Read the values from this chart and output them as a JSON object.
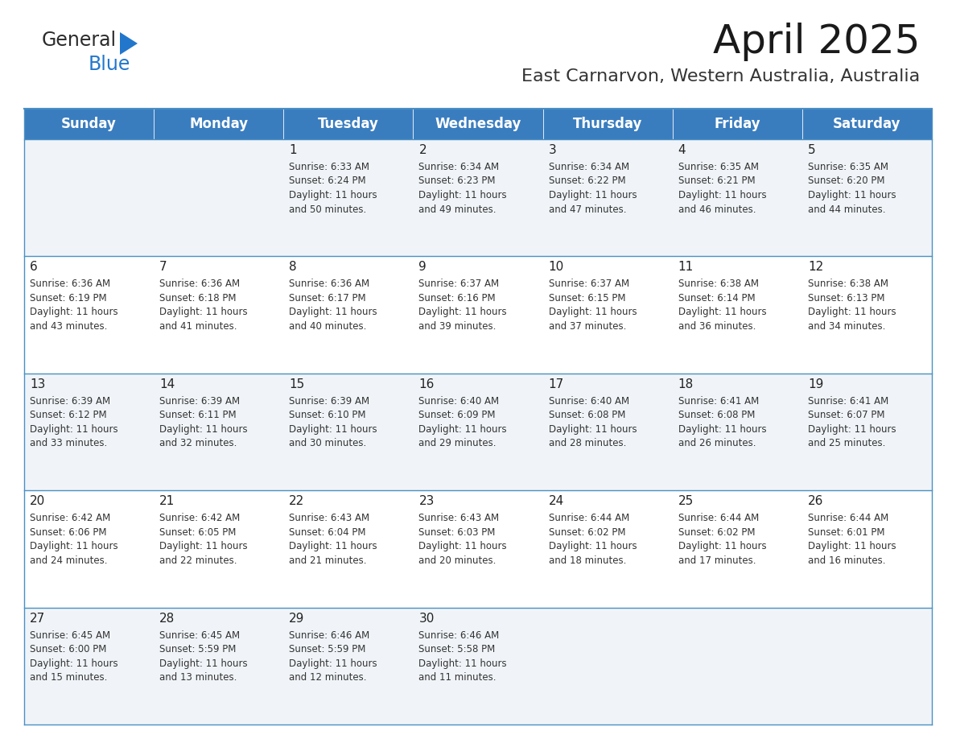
{
  "title": "April 2025",
  "subtitle": "East Carnarvon, Western Australia, Australia",
  "header_color": "#3a7dbf",
  "header_text_color": "#ffffff",
  "days_of_week": [
    "Sunday",
    "Monday",
    "Tuesday",
    "Wednesday",
    "Thursday",
    "Friday",
    "Saturday"
  ],
  "background_color": "#ffffff",
  "row_colors": [
    "#f0f4f8",
    "#ffffff",
    "#f0f4f8",
    "#ffffff",
    "#f0f4f8"
  ],
  "grid_line_color": "#4a90c4",
  "text_color": "#333333",
  "day_num_color": "#222222",
  "calendar_data": [
    {
      "day": 1,
      "col": 2,
      "row": 0,
      "sunrise": "6:33 AM",
      "sunset": "6:24 PM",
      "daylight_hours": 11,
      "daylight_minutes": 50
    },
    {
      "day": 2,
      "col": 3,
      "row": 0,
      "sunrise": "6:34 AM",
      "sunset": "6:23 PM",
      "daylight_hours": 11,
      "daylight_minutes": 49
    },
    {
      "day": 3,
      "col": 4,
      "row": 0,
      "sunrise": "6:34 AM",
      "sunset": "6:22 PM",
      "daylight_hours": 11,
      "daylight_minutes": 47
    },
    {
      "day": 4,
      "col": 5,
      "row": 0,
      "sunrise": "6:35 AM",
      "sunset": "6:21 PM",
      "daylight_hours": 11,
      "daylight_minutes": 46
    },
    {
      "day": 5,
      "col": 6,
      "row": 0,
      "sunrise": "6:35 AM",
      "sunset": "6:20 PM",
      "daylight_hours": 11,
      "daylight_minutes": 44
    },
    {
      "day": 6,
      "col": 0,
      "row": 1,
      "sunrise": "6:36 AM",
      "sunset": "6:19 PM",
      "daylight_hours": 11,
      "daylight_minutes": 43
    },
    {
      "day": 7,
      "col": 1,
      "row": 1,
      "sunrise": "6:36 AM",
      "sunset": "6:18 PM",
      "daylight_hours": 11,
      "daylight_minutes": 41
    },
    {
      "day": 8,
      "col": 2,
      "row": 1,
      "sunrise": "6:36 AM",
      "sunset": "6:17 PM",
      "daylight_hours": 11,
      "daylight_minutes": 40
    },
    {
      "day": 9,
      "col": 3,
      "row": 1,
      "sunrise": "6:37 AM",
      "sunset": "6:16 PM",
      "daylight_hours": 11,
      "daylight_minutes": 39
    },
    {
      "day": 10,
      "col": 4,
      "row": 1,
      "sunrise": "6:37 AM",
      "sunset": "6:15 PM",
      "daylight_hours": 11,
      "daylight_minutes": 37
    },
    {
      "day": 11,
      "col": 5,
      "row": 1,
      "sunrise": "6:38 AM",
      "sunset": "6:14 PM",
      "daylight_hours": 11,
      "daylight_minutes": 36
    },
    {
      "day": 12,
      "col": 6,
      "row": 1,
      "sunrise": "6:38 AM",
      "sunset": "6:13 PM",
      "daylight_hours": 11,
      "daylight_minutes": 34
    },
    {
      "day": 13,
      "col": 0,
      "row": 2,
      "sunrise": "6:39 AM",
      "sunset": "6:12 PM",
      "daylight_hours": 11,
      "daylight_minutes": 33
    },
    {
      "day": 14,
      "col": 1,
      "row": 2,
      "sunrise": "6:39 AM",
      "sunset": "6:11 PM",
      "daylight_hours": 11,
      "daylight_minutes": 32
    },
    {
      "day": 15,
      "col": 2,
      "row": 2,
      "sunrise": "6:39 AM",
      "sunset": "6:10 PM",
      "daylight_hours": 11,
      "daylight_minutes": 30
    },
    {
      "day": 16,
      "col": 3,
      "row": 2,
      "sunrise": "6:40 AM",
      "sunset": "6:09 PM",
      "daylight_hours": 11,
      "daylight_minutes": 29
    },
    {
      "day": 17,
      "col": 4,
      "row": 2,
      "sunrise": "6:40 AM",
      "sunset": "6:08 PM",
      "daylight_hours": 11,
      "daylight_minutes": 28
    },
    {
      "day": 18,
      "col": 5,
      "row": 2,
      "sunrise": "6:41 AM",
      "sunset": "6:08 PM",
      "daylight_hours": 11,
      "daylight_minutes": 26
    },
    {
      "day": 19,
      "col": 6,
      "row": 2,
      "sunrise": "6:41 AM",
      "sunset": "6:07 PM",
      "daylight_hours": 11,
      "daylight_minutes": 25
    },
    {
      "day": 20,
      "col": 0,
      "row": 3,
      "sunrise": "6:42 AM",
      "sunset": "6:06 PM",
      "daylight_hours": 11,
      "daylight_minutes": 24
    },
    {
      "day": 21,
      "col": 1,
      "row": 3,
      "sunrise": "6:42 AM",
      "sunset": "6:05 PM",
      "daylight_hours": 11,
      "daylight_minutes": 22
    },
    {
      "day": 22,
      "col": 2,
      "row": 3,
      "sunrise": "6:43 AM",
      "sunset": "6:04 PM",
      "daylight_hours": 11,
      "daylight_minutes": 21
    },
    {
      "day": 23,
      "col": 3,
      "row": 3,
      "sunrise": "6:43 AM",
      "sunset": "6:03 PM",
      "daylight_hours": 11,
      "daylight_minutes": 20
    },
    {
      "day": 24,
      "col": 4,
      "row": 3,
      "sunrise": "6:44 AM",
      "sunset": "6:02 PM",
      "daylight_hours": 11,
      "daylight_minutes": 18
    },
    {
      "day": 25,
      "col": 5,
      "row": 3,
      "sunrise": "6:44 AM",
      "sunset": "6:02 PM",
      "daylight_hours": 11,
      "daylight_minutes": 17
    },
    {
      "day": 26,
      "col": 6,
      "row": 3,
      "sunrise": "6:44 AM",
      "sunset": "6:01 PM",
      "daylight_hours": 11,
      "daylight_minutes": 16
    },
    {
      "day": 27,
      "col": 0,
      "row": 4,
      "sunrise": "6:45 AM",
      "sunset": "6:00 PM",
      "daylight_hours": 11,
      "daylight_minutes": 15
    },
    {
      "day": 28,
      "col": 1,
      "row": 4,
      "sunrise": "6:45 AM",
      "sunset": "5:59 PM",
      "daylight_hours": 11,
      "daylight_minutes": 13
    },
    {
      "day": 29,
      "col": 2,
      "row": 4,
      "sunrise": "6:46 AM",
      "sunset": "5:59 PM",
      "daylight_hours": 11,
      "daylight_minutes": 12
    },
    {
      "day": 30,
      "col": 3,
      "row": 4,
      "sunrise": "6:46 AM",
      "sunset": "5:58 PM",
      "daylight_hours": 11,
      "daylight_minutes": 11
    }
  ],
  "num_rows": 5,
  "num_cols": 7,
  "logo_general_color": "#2b2b2b",
  "logo_blue_color": "#2277cc",
  "title_fontsize": 36,
  "subtitle_fontsize": 16,
  "dow_fontsize": 12,
  "day_num_fontsize": 11,
  "cell_text_fontsize": 8.5
}
